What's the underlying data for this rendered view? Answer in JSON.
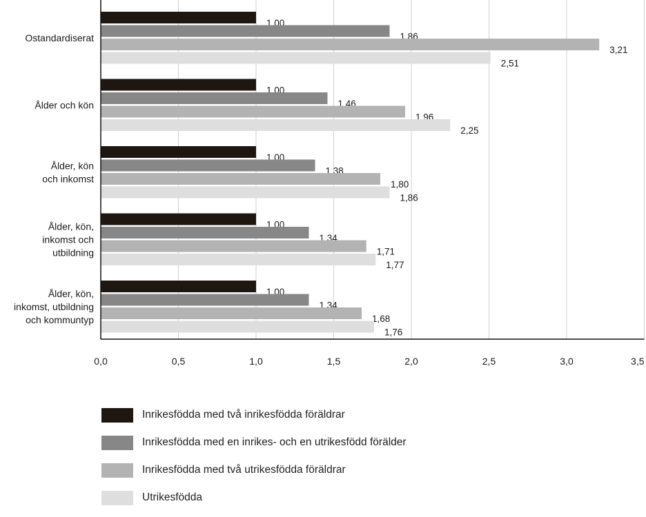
{
  "chart_data": {
    "type": "bar",
    "orientation": "horizontal",
    "categories": [
      [
        "Ostandardiserat"
      ],
      [
        "Ålder och kön"
      ],
      [
        "Ålder, kön",
        "och inkomst"
      ],
      [
        "Ålder, kön,",
        "inkomst och",
        "utbildning"
      ],
      [
        "Ålder, kön,",
        "inkomst, utbildning",
        "och kommuntyp"
      ]
    ],
    "series": [
      {
        "name": "Inrikesfödda med två inrikesfödda föräldrar",
        "color": "#1e1711",
        "values": [
          1.0,
          1.0,
          1.0,
          1.0,
          1.0
        ],
        "labels": [
          "1,00",
          "1,00",
          "1,00",
          "1,00",
          "1,00"
        ]
      },
      {
        "name": "Inrikesfödda med en inrikes- och en utrikesfödd förälder",
        "color": "#878787",
        "values": [
          1.86,
          1.46,
          1.38,
          1.34,
          1.34
        ],
        "labels": [
          "1,86",
          "1,46",
          "1,38",
          "1,34",
          "1,34"
        ]
      },
      {
        "name": "Inrikesfödda med två utrikesfödda föräldrar",
        "color": "#b3b3b3",
        "values": [
          3.21,
          1.96,
          1.8,
          1.71,
          1.68
        ],
        "labels": [
          "3,21",
          "1,96",
          "1,80",
          "1,71",
          "1,68"
        ]
      },
      {
        "name": "Utrikesfödda",
        "color": "#dedede",
        "values": [
          2.51,
          2.25,
          1.86,
          1.77,
          1.76
        ],
        "labels": [
          "2,51",
          "2,25",
          "1,86",
          "1,77",
          "1,76"
        ]
      }
    ],
    "x_ticks": [
      0,
      0.5,
      1.0,
      1.5,
      2.0,
      2.5,
      3.0,
      3.5
    ],
    "x_tick_labels": [
      "0,0",
      "0,5",
      "1,0",
      "1,5",
      "2,0",
      "2,5",
      "3,0",
      "3,5"
    ],
    "xlim": [
      0,
      3.5
    ],
    "grid": true,
    "legend_position": "bottom-left",
    "title": "",
    "xlabel": "",
    "ylabel": ""
  }
}
